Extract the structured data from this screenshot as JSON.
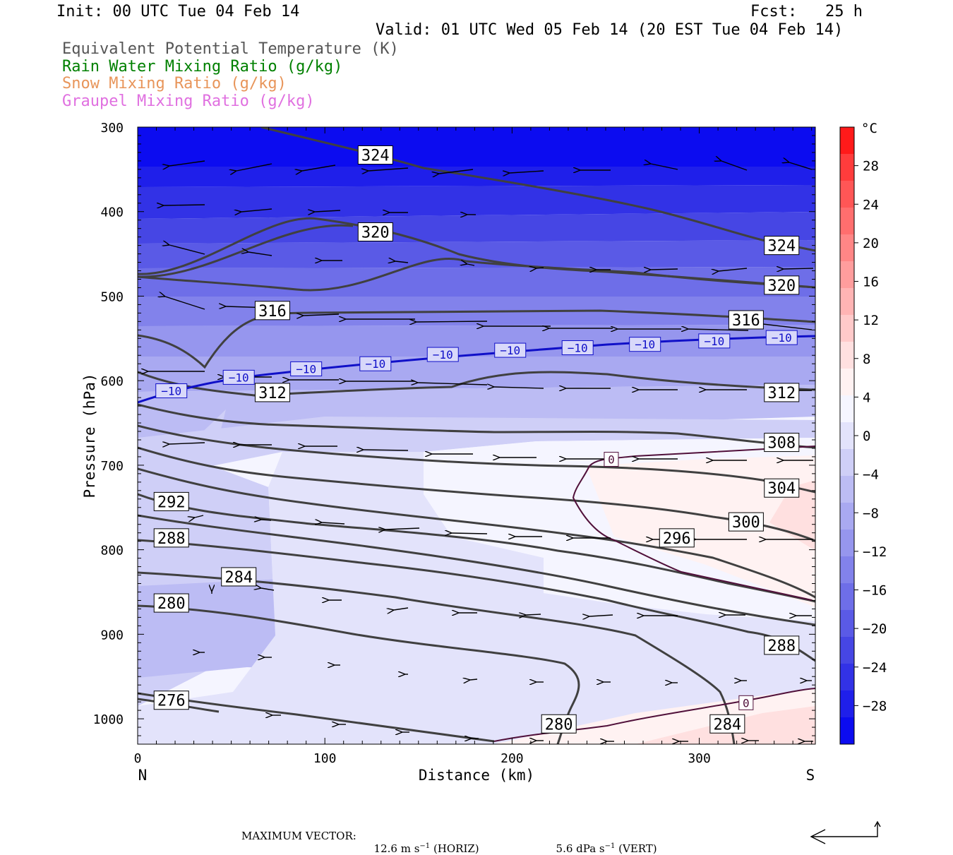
{
  "header": {
    "init": "Init: 00 UTC Tue 04 Feb 14",
    "fcst": "Fcst:   25 h",
    "valid": "Valid: 01 UTC Wed 05 Feb 14 (20 EST Tue 04 Feb 14)"
  },
  "legend": [
    {
      "label": "Equivalent Potential Temperature (K)",
      "color": "#555555"
    },
    {
      "label": "Rain Water Mixing Ratio (g/kg)",
      "color": "#008000"
    },
    {
      "label": "Snow Mixing Ratio (g/kg)",
      "color": "#e8955a"
    },
    {
      "label": "Graupel Mixing Ratio (g/kg)",
      "color": "#e070e0"
    }
  ],
  "chart_data": {
    "type": "cross-section contour",
    "xlabel": "Distance (km)",
    "ylabel": "Pressure (hPa)",
    "x_ticks": [
      "0",
      "100",
      "200",
      "300"
    ],
    "x_end_labels": {
      "left": "N",
      "right": "S"
    },
    "xlim": [
      0,
      362
    ],
    "y_ticks": [
      "300",
      "400",
      "500",
      "600",
      "700",
      "800",
      "900",
      "1000"
    ],
    "ylim": [
      300,
      1030
    ],
    "shading": {
      "field": "temperature",
      "unit": "°C"
    },
    "colorbar": {
      "unit": "°C",
      "labels": [
        "28",
        "24",
        "20",
        "16",
        "12",
        "8",
        "4",
        "0",
        "−4",
        "−8",
        "−12",
        "−16",
        "−20",
        "−24",
        "−28"
      ],
      "colors": [
        "#ff1a1a",
        "#ff3c3c",
        "#ff5656",
        "#ff6e6e",
        "#ff8686",
        "#ff9d9d",
        "#ffb4b4",
        "#ffcaca",
        "#ffe0e0",
        "#fff2f2",
        "#f5f5ff",
        "#e3e3fb",
        "#cfcff7",
        "#bcbcf4",
        "#a9a9f1",
        "#9696ee",
        "#8282eb",
        "#6e6ee8",
        "#5a5ae6",
        "#4646e4",
        "#3232e6",
        "#1f1fea",
        "#0c0cf0"
      ]
    },
    "theta_e_labels": [
      {
        "text": "324",
        "x": 127,
        "p": 333
      },
      {
        "text": "320",
        "x": 127,
        "p": 424
      },
      {
        "text": "324",
        "x": 344,
        "p": 440
      },
      {
        "text": "320",
        "x": 344,
        "p": 487
      },
      {
        "text": "316",
        "x": 72,
        "p": 517
      },
      {
        "text": "316",
        "x": 325,
        "p": 528
      },
      {
        "text": "312",
        "x": 72,
        "p": 614
      },
      {
        "text": "312",
        "x": 344,
        "p": 614
      },
      {
        "text": "308",
        "x": 344,
        "p": 673
      },
      {
        "text": "304",
        "x": 344,
        "p": 727
      },
      {
        "text": "300",
        "x": 325,
        "p": 767
      },
      {
        "text": "296",
        "x": 288,
        "p": 786
      },
      {
        "text": "292",
        "x": 18,
        "p": 743
      },
      {
        "text": "288",
        "x": 18,
        "p": 786
      },
      {
        "text": "284",
        "x": 54,
        "p": 832
      },
      {
        "text": "280",
        "x": 18,
        "p": 863
      },
      {
        "text": "288",
        "x": 344,
        "p": 913
      },
      {
        "text": "276",
        "x": 18,
        "p": 978
      },
      {
        "text": "280",
        "x": 225,
        "p": 1006
      },
      {
        "text": "284",
        "x": 315,
        "p": 1006
      }
    ],
    "temp_labels": [
      {
        "text": "−10",
        "x": 18,
        "p": 612
      },
      {
        "text": "−10",
        "x": 54,
        "p": 596
      },
      {
        "text": "−10",
        "x": 90,
        "p": 586
      },
      {
        "text": "−10",
        "x": 127,
        "p": 580
      },
      {
        "text": "−10",
        "x": 163,
        "p": 569
      },
      {
        "text": "−10",
        "x": 199,
        "p": 564
      },
      {
        "text": "−10",
        "x": 235,
        "p": 561
      },
      {
        "text": "−10",
        "x": 271,
        "p": 557
      },
      {
        "text": "−10",
        "x": 308,
        "p": 553
      },
      {
        "text": "−10",
        "x": 344,
        "p": 549
      },
      {
        "text": "0",
        "x": 253,
        "p": 693
      },
      {
        "text": "0",
        "x": 325,
        "p": 981
      }
    ]
  },
  "footer": {
    "max_vector_label": "MAXIMUM VECTOR:",
    "horiz": "12.6 m s",
    "horiz_unit": "(HORIZ)",
    "vert": "5.6 dPa s",
    "vert_unit": "(VERT)",
    "exponent": "−1"
  }
}
